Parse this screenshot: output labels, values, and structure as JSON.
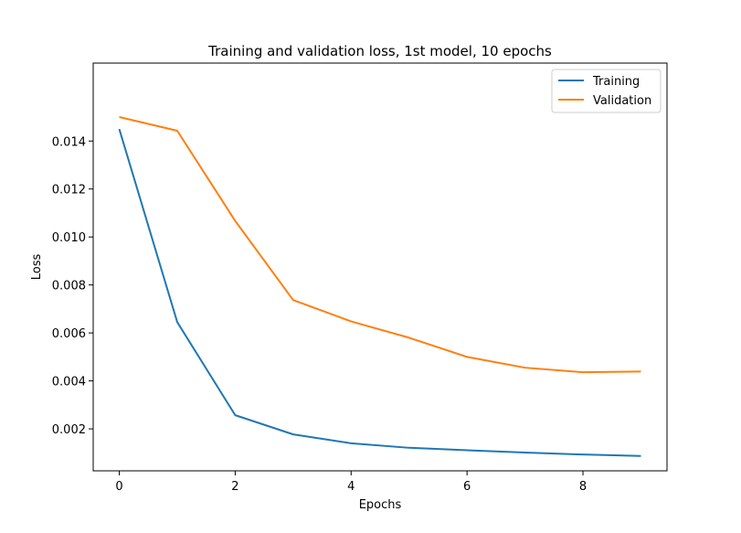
{
  "chart_data": {
    "type": "line",
    "title": "Training and validation loss, 1st model, 10 epochs",
    "xlabel": "Epochs",
    "ylabel": "Loss",
    "x": [
      0,
      1,
      2,
      3,
      4,
      5,
      6,
      7,
      8,
      9
    ],
    "xlim": [
      -0.45,
      9.45
    ],
    "ylim": [
      0.00025,
      0.01725
    ],
    "xticks": [
      0,
      2,
      4,
      6,
      8
    ],
    "xtick_labels": [
      "0",
      "2",
      "4",
      "6",
      "8"
    ],
    "yticks": [
      0.002,
      0.004,
      0.006,
      0.008,
      0.01,
      0.012,
      0.014
    ],
    "ytick_labels": [
      "0.002",
      "0.004",
      "0.006",
      "0.008",
      "0.010",
      "0.012",
      "0.014"
    ],
    "grid": false,
    "legend_position": "top-right",
    "series": [
      {
        "name": "Training",
        "color": "#1f77b4",
        "values": [
          0.0145,
          0.00645,
          0.00257,
          0.00177,
          0.0014,
          0.00121,
          0.00111,
          0.00101,
          0.00093,
          0.00087
        ]
      },
      {
        "name": "Validation",
        "color": "#ff7f0e",
        "values": [
          0.015,
          0.01443,
          0.01067,
          0.00737,
          0.00648,
          0.0058,
          0.005,
          0.00455,
          0.00436,
          0.00439
        ]
      }
    ]
  }
}
